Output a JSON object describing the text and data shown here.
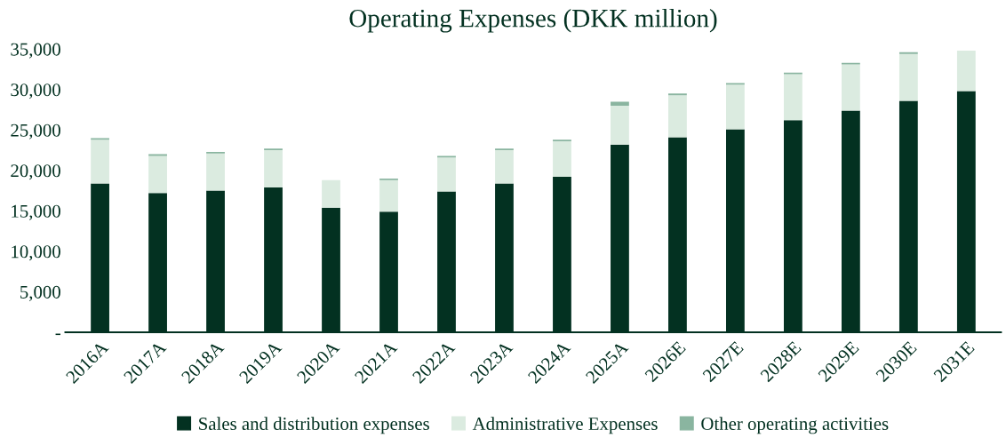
{
  "chart_data": {
    "type": "bar",
    "title": "Operating Expenses (DKK million)",
    "stacked": true,
    "categories": [
      "2016A",
      "2017A",
      "2018A",
      "2019A",
      "2020A",
      "2021A",
      "2022A",
      "2023A",
      "2024A",
      "2025A",
      "2026E",
      "2027E",
      "2028E",
      "2029E",
      "2030E",
      "2031E"
    ],
    "series": [
      {
        "name": "Sales and distribution expenses",
        "color": "#033121",
        "values": [
          18400,
          17200,
          17500,
          17900,
          15400,
          14900,
          17400,
          18400,
          19200,
          23200,
          24100,
          25100,
          26200,
          27400,
          28600,
          29800
        ]
      },
      {
        "name": "Administrative Expenses",
        "color": "#dbebe0",
        "values": [
          5400,
          4600,
          4600,
          4600,
          3400,
          3900,
          4200,
          4100,
          4400,
          4800,
          5200,
          5500,
          5700,
          5700,
          5800,
          5000
        ]
      },
      {
        "name": "Other operating activities",
        "color": "#8ab5a0",
        "values": [
          200,
          200,
          200,
          200,
          0,
          200,
          200,
          200,
          200,
          500,
          200,
          200,
          200,
          200,
          200,
          0
        ]
      }
    ],
    "ylim": [
      0,
      35000
    ],
    "yticks": [
      {
        "value": 0,
        "label": "-"
      },
      {
        "value": 5000,
        "label": "5,000"
      },
      {
        "value": 10000,
        "label": "10,000"
      },
      {
        "value": 15000,
        "label": "15,000"
      },
      {
        "value": 20000,
        "label": "20,000"
      },
      {
        "value": 25000,
        "label": "25,000"
      },
      {
        "value": 30000,
        "label": "30,000"
      },
      {
        "value": 35000,
        "label": "35,000"
      }
    ],
    "grid": false,
    "legend": "bottom"
  }
}
